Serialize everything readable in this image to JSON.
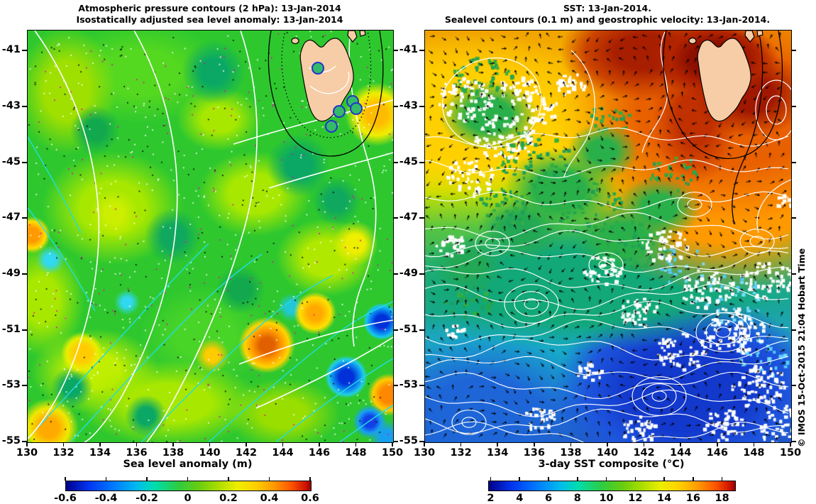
{
  "left_panel": {
    "title_line1": "Atmospheric pressure contours (2 hPa): 13-Jan-2014",
    "title_line2": "Isostatically adjusted sea level anomaly: 13-Jan-2014",
    "colorbar_label": "Sea level anomaly (m)",
    "x_ticks": [
      "130",
      "132",
      "134",
      "136",
      "138",
      "140",
      "142",
      "144",
      "146",
      "148",
      "150"
    ],
    "y_ticks": [
      "-41",
      "-43",
      "-45",
      "-47",
      "-49",
      "-51",
      "-53",
      "-55"
    ],
    "colorbar_ticks": [
      "-0.6",
      "-0.4",
      "-0.2",
      "0",
      "0.2",
      "0.4",
      "0.6"
    ]
  },
  "right_panel": {
    "title_line1": "SST: 13-Jan-2014.",
    "title_line2": "Sealevel contours (0.1 m) and geostrophic velocity: 13-Jan-2014.",
    "colorbar_label": "3-day SST composite (°C)",
    "x_ticks": [
      "130",
      "132",
      "134",
      "136",
      "138",
      "140",
      "142",
      "144",
      "146",
      "148",
      "150"
    ],
    "y_ticks": [
      "-41",
      "-43",
      "-45",
      "-47",
      "-49",
      "-51",
      "-53",
      "-55"
    ],
    "colorbar_ticks": [
      "2",
      "4",
      "6",
      "8",
      "10",
      "12",
      "14",
      "16",
      "18"
    ]
  },
  "watermark": "© IMOS 15-Oct-2015 21:04 Hobart Time",
  "colors": {
    "land": "#f6cda6",
    "sea_base_green": "#2ec82e",
    "contour_white": "#ffffff",
    "contour_cyan": "#22dde0",
    "station_ring_blue": "#2233cc",
    "dot_magenta": "#ee00aa"
  },
  "chart_data": [
    {
      "panel": "left",
      "type": "heatmap",
      "title": "Atmospheric pressure contours (2 hPa): 13-Jan-2014",
      "subtitle": "Isostatically adjusted sea level anomaly: 13-Jan-2014",
      "x_ticks": [
        130,
        132,
        134,
        136,
        138,
        140,
        142,
        144,
        146,
        148,
        150
      ],
      "y_ticks": [
        -41,
        -43,
        -45,
        -47,
        -49,
        -51,
        -53,
        -55
      ],
      "xlim": [
        130,
        150
      ],
      "ylim": [
        -55,
        -40.3
      ],
      "colormap": "jet",
      "grid": false,
      "colorbar": {
        "label": "Sea level anomaly (m)",
        "ticks": [
          -0.6,
          -0.4,
          -0.2,
          0,
          0.2,
          0.4,
          0.6
        ],
        "range": [
          -0.6,
          0.6
        ]
      },
      "overlays": [
        "white atmospheric pressure contours",
        "cyan sea level contours",
        "scattered white/black/magenta observation dots",
        "Tasmania land mask",
        "coastal station circles"
      ]
    },
    {
      "panel": "right",
      "type": "heatmap",
      "title": "SST: 13-Jan-2014.",
      "subtitle": "Sealevel contours (0.1 m) and geostrophic velocity: 13-Jan-2014.",
      "x_ticks": [
        130,
        132,
        134,
        136,
        138,
        140,
        142,
        144,
        146,
        148,
        150
      ],
      "y_ticks": [
        -41,
        -43,
        -45,
        -47,
        -49,
        -51,
        -53,
        -55
      ],
      "xlim": [
        130,
        150
      ],
      "ylim": [
        -55,
        -40.3
      ],
      "colormap": "jet",
      "grid": false,
      "colorbar": {
        "label": "3-day SST composite (°C)",
        "ticks": [
          2,
          4,
          6,
          8,
          10,
          12,
          14,
          16,
          18
        ],
        "range": [
          1.8,
          18.8
        ]
      },
      "overlays": [
        "white sealevel contours (0.1 m)",
        "black geostrophic velocity arrows",
        "white cloud gaps in composite",
        "Tasmania land mask"
      ]
    }
  ]
}
